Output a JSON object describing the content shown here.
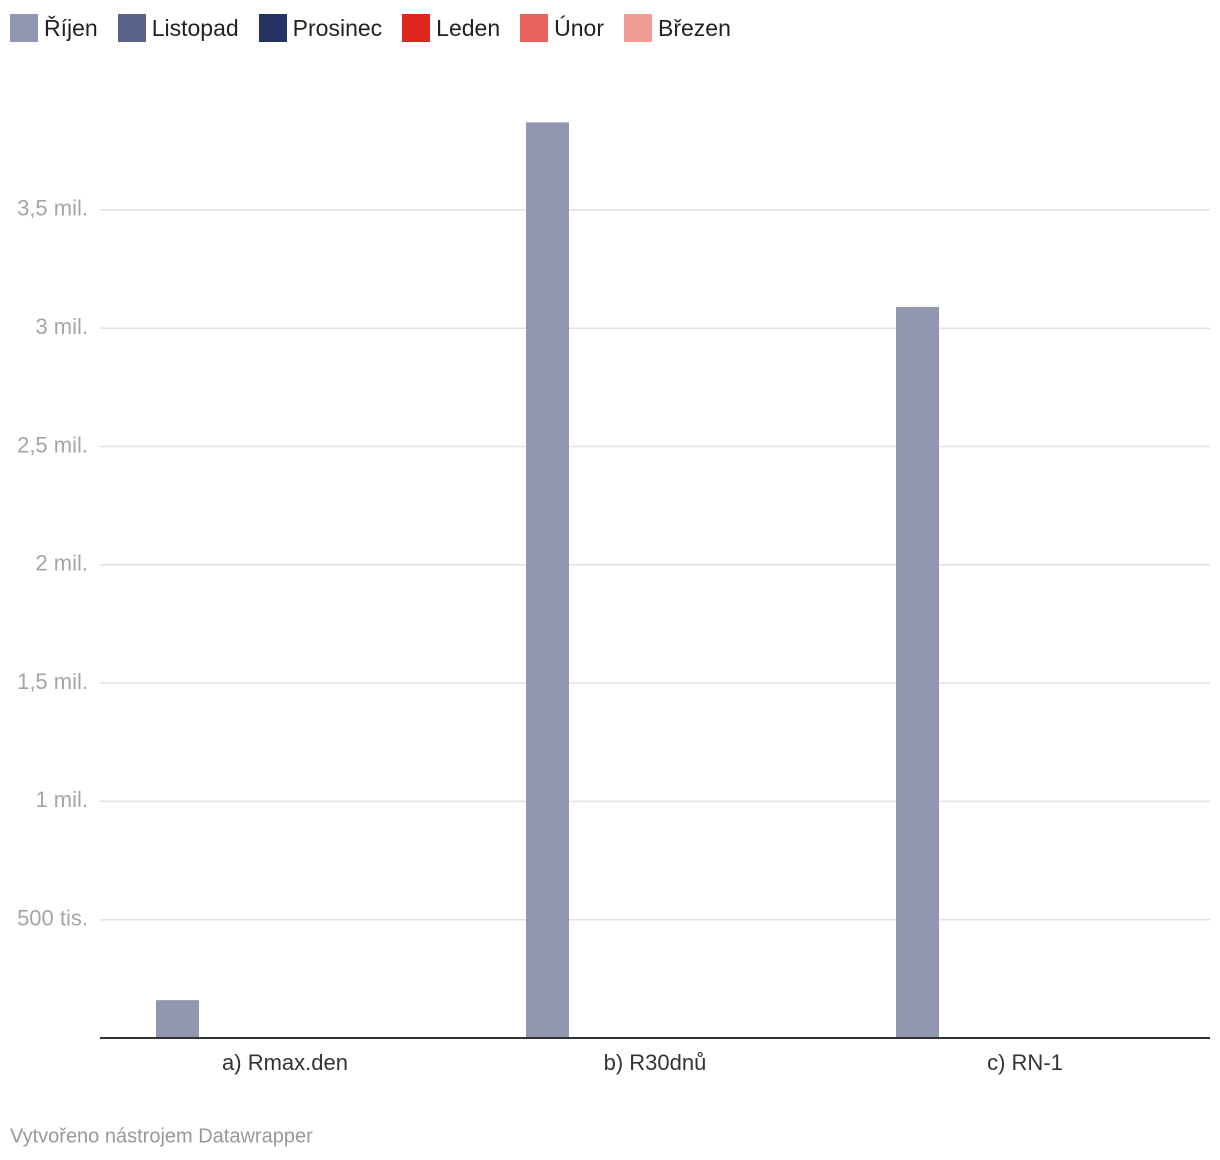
{
  "chart_data": {
    "type": "bar",
    "categories": [
      "a) Rmax.den",
      "b) R30dnů",
      "c) RN-1"
    ],
    "series": [
      {
        "name": "Říjen",
        "color": "#9197b0",
        "values": [
          160000,
          3870000,
          3090000
        ]
      },
      {
        "name": "Listopad",
        "color": "#5a6387",
        "values": [
          0,
          0,
          0
        ]
      },
      {
        "name": "Prosinec",
        "color": "#253364",
        "values": [
          0,
          0,
          0
        ]
      },
      {
        "name": "Leden",
        "color": "#e0261e",
        "values": [
          0,
          0,
          0
        ]
      },
      {
        "name": "Únor",
        "color": "#e8625b",
        "values": [
          0,
          0,
          0
        ]
      },
      {
        "name": "Březen",
        "color": "#f29c96",
        "values": [
          0,
          0,
          0
        ]
      }
    ],
    "ylim": [
      0,
      4000000
    ],
    "yticks": [
      {
        "value": 500000,
        "label": "500 tis."
      },
      {
        "value": 1000000,
        "label": "1 mil."
      },
      {
        "value": 1500000,
        "label": "1,5 mil."
      },
      {
        "value": 2000000,
        "label": "2 mil."
      },
      {
        "value": 2500000,
        "label": "2,5 mil."
      },
      {
        "value": 3000000,
        "label": "3 mil."
      },
      {
        "value": 3500000,
        "label": "3,5 mil."
      }
    ],
    "grid": true,
    "legend": "top",
    "credit": "Vytvořeno nástrojem Datawrapper"
  }
}
